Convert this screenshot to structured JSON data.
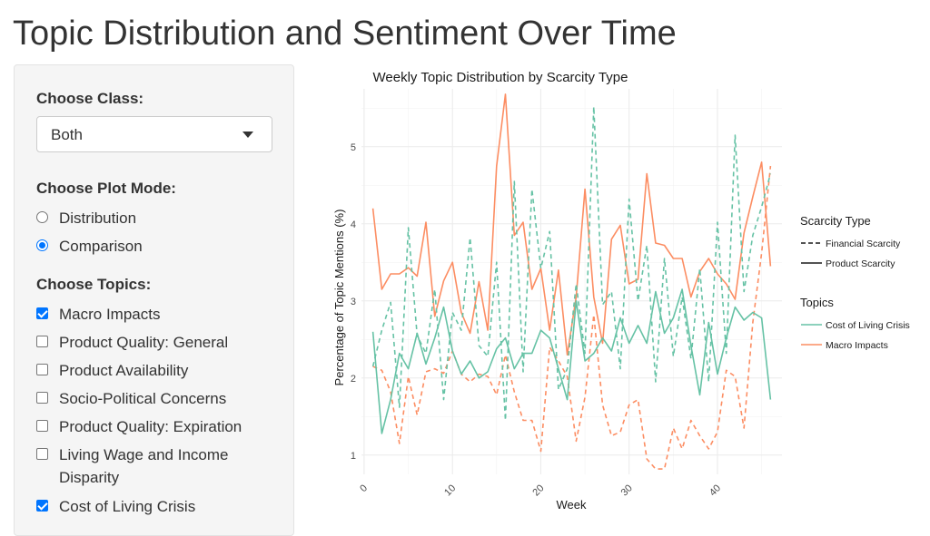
{
  "app": {
    "title": "Topic Distribution and Sentiment Over Time"
  },
  "sidebar": {
    "class_label": "Choose Class:",
    "class_value": "Both",
    "mode_label": "Choose Plot Mode:",
    "modes": [
      {
        "label": "Distribution",
        "selected": false
      },
      {
        "label": "Comparison",
        "selected": true
      }
    ],
    "topics_label": "Choose Topics:",
    "topics": [
      {
        "label": "Macro Impacts",
        "checked": true
      },
      {
        "label": "Product Quality: General",
        "checked": false
      },
      {
        "label": "Product Availability",
        "checked": false
      },
      {
        "label": "Socio-Political Concerns",
        "checked": false
      },
      {
        "label": "Product Quality: Expiration",
        "checked": false
      },
      {
        "label": "Living Wage and Income",
        "label2": "Disparity",
        "checked": false
      },
      {
        "label": "Cost of Living Crisis",
        "checked": true
      }
    ]
  },
  "chart_data": {
    "type": "line",
    "title": "Weekly Topic Distribution by Scarcity Type",
    "xlabel": "Week",
    "ylabel": "Percentage of Topic Mentions (%)",
    "xlim": [
      -0.3,
      47.3
    ],
    "ylim": [
      0.75,
      5.75
    ],
    "x_ticks": [
      0,
      10,
      20,
      30,
      40
    ],
    "y_ticks": [
      1,
      2,
      3,
      4,
      5
    ],
    "colors": {
      "Cost of Living Crisis": "#66c2a5",
      "Macro Impacts": "#fc8d62"
    },
    "legend": {
      "linetype_title": "Scarcity Type",
      "linetype_items": [
        {
          "label": "Financial Scarcity",
          "dash": true
        },
        {
          "label": "Product Scarcity",
          "dash": false
        }
      ],
      "color_title": "Topics",
      "color_items": [
        "Cost of Living Crisis",
        "Macro Impacts"
      ]
    },
    "x": [
      1,
      2,
      3,
      4,
      5,
      6,
      7,
      8,
      9,
      10,
      11,
      12,
      13,
      14,
      15,
      16,
      17,
      18,
      19,
      20,
      21,
      22,
      23,
      24,
      25,
      26,
      27,
      28,
      29,
      30,
      31,
      32,
      33,
      34,
      35,
      36,
      37,
      38,
      39,
      40,
      41,
      42,
      43,
      44,
      45,
      46
    ],
    "series": [
      {
        "topic": "Macro Impacts",
        "scarcity": "Product Scarcity",
        "values": [
          4.2,
          3.15,
          3.35,
          3.35,
          3.43,
          3.32,
          4.02,
          2.8,
          3.26,
          3.5,
          2.85,
          2.58,
          3.25,
          2.62,
          4.75,
          5.68,
          3.85,
          4.02,
          3.15,
          3.42,
          2.62,
          3.4,
          2.3,
          3.05,
          4.45,
          3.05,
          2.45,
          3.8,
          3.98,
          3.22,
          3.28,
          4.65,
          3.75,
          3.72,
          3.55,
          3.55,
          3.05,
          3.38,
          3.55,
          3.35,
          3.22,
          3.02,
          3.88,
          4.35,
          4.8,
          3.45
        ]
      },
      {
        "topic": "Macro Impacts",
        "scarcity": "Financial Scarcity",
        "values": [
          2.15,
          2.1,
          1.82,
          1.15,
          2.02,
          1.52,
          2.08,
          2.12,
          2.06,
          2.35,
          2.05,
          1.95,
          2.05,
          2.02,
          1.78,
          2.3,
          1.82,
          1.45,
          1.45,
          1.05,
          2.4,
          2.22,
          2.02,
          1.18,
          1.75,
          2.82,
          1.65,
          1.25,
          1.3,
          1.65,
          1.72,
          0.95,
          0.82,
          0.82,
          1.35,
          1.08,
          1.45,
          1.25,
          1.08,
          1.3,
          2.1,
          2.02,
          1.35,
          2.72,
          3.62,
          4.75
        ]
      },
      {
        "topic": "Cost of Living Crisis",
        "scarcity": "Product Scarcity",
        "values": [
          2.6,
          1.28,
          1.72,
          2.32,
          2.12,
          2.58,
          2.18,
          2.52,
          2.92,
          2.35,
          2.05,
          2.22,
          2.0,
          2.08,
          2.38,
          2.52,
          2.12,
          2.32,
          2.32,
          2.62,
          2.52,
          2.12,
          1.72,
          3.0,
          2.22,
          2.32,
          2.52,
          2.35,
          2.78,
          2.45,
          2.68,
          2.45,
          3.12,
          2.58,
          2.78,
          3.15,
          2.42,
          1.78,
          2.72,
          2.05,
          2.52,
          2.92,
          2.75,
          2.85,
          2.78,
          1.72
        ]
      },
      {
        "topic": "Cost of Living Crisis",
        "scarcity": "Financial Scarcity",
        "values": [
          2.15,
          2.62,
          2.98,
          1.62,
          3.95,
          2.55,
          2.32,
          3.15,
          1.72,
          2.85,
          2.62,
          3.82,
          2.42,
          2.28,
          3.5,
          1.45,
          4.55,
          2.08,
          4.45,
          3.42,
          3.9,
          1.85,
          2.12,
          3.22,
          2.32,
          5.52,
          2.95,
          3.12,
          2.12,
          4.32,
          3.0,
          3.72,
          1.95,
          3.55,
          2.28,
          3.05,
          2.25,
          3.42,
          1.95,
          4.02,
          2.32,
          5.15,
          3.12,
          3.85,
          4.22,
          4.65
        ]
      }
    ]
  }
}
